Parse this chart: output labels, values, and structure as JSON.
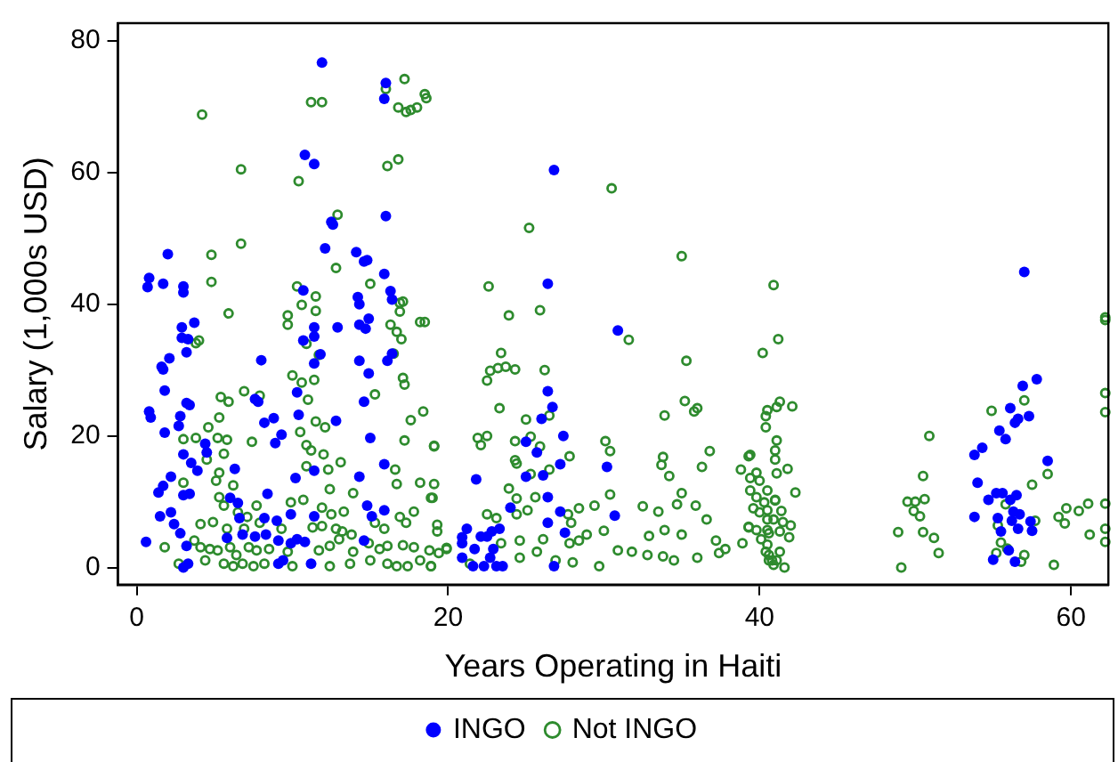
{
  "chart_data": {
    "type": "scatter",
    "xlabel": "Years Operating in Haiti",
    "ylabel": "Salary (1,000s USD)",
    "xlim": [
      -1.2,
      62.4
    ],
    "ylim": [
      -2.6,
      82.7
    ],
    "xticks": [
      0,
      20,
      40,
      60
    ],
    "yticks": [
      0,
      20,
      40,
      60,
      80
    ],
    "grid": false,
    "legend": "bottom",
    "marker": "circle",
    "series": [
      {
        "name": "INGO",
        "color": "#0000ff",
        "x": [
          11.9,
          16.0,
          15.9,
          10.8,
          11.4,
          12.5,
          12.6,
          16.0,
          12.1,
          14.1,
          14.6,
          14.8,
          2.0,
          0.8,
          0.7,
          1.7,
          3.0,
          3.0,
          15.9,
          16.3,
          16.4,
          10.7,
          14.2,
          14.3,
          2.9,
          3.7,
          2.9,
          3.3,
          3.2,
          2.1,
          1.6,
          1.7,
          1.8,
          0.8,
          0.9,
          1.8,
          3.2,
          3.4,
          2.8,
          2.7,
          8.0,
          11.4,
          11.4,
          10.7,
          11.4,
          11.8,
          12.9,
          14.3,
          14.9,
          14.7,
          14.3,
          14.9,
          16.1,
          16.4,
          7.8,
          7.6,
          10.3,
          14.6,
          8.2,
          8.8,
          10.4,
          12.8,
          8.9,
          9.3,
          15.0,
          3.0,
          4.4,
          4.5,
          3.5,
          6.3,
          3.9,
          2.2,
          1.7,
          11.4,
          10.2,
          15.9,
          1.4,
          3.4,
          3.0,
          6.0,
          6.5,
          8.4,
          14.3,
          14.8,
          15.9,
          1.5,
          2.2,
          2.4,
          6.6,
          8.2,
          9.9,
          9.0,
          11.4,
          15.1,
          0.6,
          2.8,
          3.2,
          5.8,
          6.8,
          7.6,
          8.3,
          9.1,
          9.4,
          9.1,
          9.9,
          10.3,
          10.8,
          3.3,
          3.0,
          11.2,
          14.6,
          20.9,
          20.9,
          26.8,
          26.4,
          30.9,
          26.4,
          26.7,
          26.0,
          27.4,
          25.0,
          25.7,
          27.2,
          30.2,
          21.8,
          26.1,
          25.0,
          26.4,
          27.2,
          30.7,
          24.0,
          26.4,
          27.5,
          21.2,
          20.9,
          22.1,
          22.5,
          22.8,
          23.3,
          21.7,
          22.9,
          22.7,
          21.6,
          22.3,
          23.1,
          23.5,
          26.8,
          57.0,
          57.8,
          56.9,
          56.1,
          57.3,
          56.6,
          56.4,
          55.4,
          55.8,
          54.3,
          53.8,
          58.5,
          54.0,
          55.2,
          54.7,
          55.6,
          56.5,
          56.1,
          56.3,
          56.7,
          53.8,
          55.3,
          57.4,
          56.2,
          55.5,
          56.6,
          57.5,
          56.0,
          55.0,
          56.4
        ],
        "values": [
          76.7,
          73.6,
          71.2,
          62.7,
          61.3,
          52.5,
          52.1,
          53.4,
          48.5,
          47.9,
          46.5,
          46.7,
          47.6,
          44.0,
          42.6,
          43.1,
          42.7,
          41.8,
          44.6,
          42.0,
          40.7,
          42.1,
          41.1,
          40.0,
          36.5,
          37.2,
          34.9,
          34.7,
          32.7,
          31.8,
          30.5,
          30.1,
          26.9,
          23.7,
          22.8,
          20.5,
          25.0,
          24.7,
          23.0,
          21.5,
          31.5,
          36.5,
          35.1,
          34.5,
          31.0,
          32.4,
          36.5,
          36.9,
          37.8,
          36.3,
          31.4,
          29.5,
          31.4,
          32.5,
          25.2,
          25.6,
          26.6,
          25.2,
          22.0,
          22.7,
          23.2,
          22.3,
          18.9,
          20.2,
          19.7,
          17.2,
          18.8,
          17.5,
          15.9,
          15.0,
          14.7,
          13.8,
          12.4,
          14.7,
          13.6,
          15.7,
          11.4,
          11.2,
          11.0,
          10.6,
          9.8,
          11.2,
          13.8,
          9.4,
          8.7,
          7.8,
          8.4,
          6.6,
          7.5,
          7.5,
          8.1,
          7.1,
          7.8,
          7.8,
          3.9,
          5.2,
          3.3,
          4.5,
          5.0,
          4.7,
          5.0,
          4.1,
          1.1,
          0.6,
          3.7,
          4.3,
          3.9,
          0.6,
          0.0,
          0.6,
          4.1,
          3.7,
          1.5,
          60.4,
          43.1,
          36.0,
          26.8,
          24.4,
          22.6,
          20.0,
          19.1,
          17.5,
          15.7,
          15.3,
          13.4,
          14.0,
          13.8,
          10.7,
          8.5,
          7.9,
          9.1,
          6.8,
          5.3,
          5.9,
          4.6,
          4.7,
          4.7,
          5.5,
          5.9,
          2.8,
          2.8,
          1.5,
          0.2,
          0.2,
          0.2,
          0.2,
          0.2,
          44.9,
          28.6,
          27.6,
          24.2,
          23.0,
          22.6,
          22.0,
          20.8,
          19.5,
          18.2,
          17.1,
          16.2,
          12.9,
          11.3,
          10.3,
          11.3,
          11.0,
          10.3,
          8.5,
          8.1,
          7.7,
          7.5,
          7.0,
          7.1,
          5.5,
          5.9,
          5.6,
          2.6,
          1.2,
          0.9
        ]
      },
      {
        "name": "Not INGO",
        "color": "#2e8b2e",
        "x": [
          4.2,
          11.2,
          11.9,
          17.2,
          16.8,
          17.3,
          17.6,
          18.0,
          18.5,
          18.6,
          16.0,
          6.7,
          10.4,
          16.1,
          16.8,
          12.9,
          6.7,
          4.8,
          4.8,
          12.8,
          5.9,
          10.3,
          10.6,
          11.5,
          11.5,
          9.7,
          9.7,
          4.0,
          3.8,
          10.9,
          11.7,
          15.0,
          16.9,
          17.1,
          16.9,
          16.3,
          18.5,
          18.2,
          16.7,
          17.0,
          16.5,
          17.1,
          17.2,
          10.0,
          10.6,
          11.4,
          11.0,
          6.9,
          7.9,
          5.4,
          5.9,
          5.3,
          4.6,
          10.5,
          11.5,
          12.1,
          15.3,
          18.4,
          17.6,
          17.2,
          19.1,
          3.0,
          3.8,
          5.2,
          5.8,
          7.4,
          4.5,
          5.6,
          10.9,
          11.2,
          12.0,
          13.1,
          10.9,
          12.3,
          16.6,
          5.3,
          6.2,
          5.1,
          3.0,
          12.4,
          13.9,
          16.7,
          18.2,
          18.9,
          5.3,
          5.6,
          6.5,
          7.1,
          7.7,
          9.9,
          10.7,
          11.9,
          12.5,
          13.3,
          16.9,
          17.8,
          4.1,
          4.9,
          5.8,
          6.9,
          7.9,
          9.3,
          11.3,
          11.9,
          12.8,
          13.2,
          13.8,
          15.3,
          15.9,
          17.3,
          19.3,
          1.8,
          3.7,
          4.1,
          4.7,
          5.2,
          6.0,
          6.4,
          7.2,
          7.7,
          8.5,
          9.7,
          11.7,
          12.4,
          13.0,
          13.9,
          14.9,
          15.6,
          16.1,
          17.1,
          17.8,
          18.8,
          19.9,
          2.7,
          4.4,
          5.6,
          6.2,
          6.8,
          7.5,
          8.2,
          10.0,
          12.4,
          13.7,
          15.0,
          16.1,
          16.7,
          17.4,
          18.2,
          18.9,
          30.5,
          25.2,
          35.0,
          22.6,
          23.9,
          25.9,
          31.6,
          23.4,
          22.7,
          23.2,
          23.7,
          24.3,
          22.5,
          26.2,
          35.3,
          40.2,
          40.9,
          41.2,
          23.3,
          25.0,
          26.5,
          35.2,
          33.9,
          35.8,
          36.0,
          19.1,
          21.9,
          22.5,
          22.1,
          24.3,
          25.3,
          25.9,
          27.8,
          30.1,
          30.4,
          33.8,
          33.7,
          34.2,
          36.3,
          36.8,
          38.8,
          39.3,
          40.4,
          41.1,
          19.1,
          19.0,
          24.3,
          24.4,
          25.3,
          26.5,
          23.9,
          25.6,
          24.4,
          30.4,
          29.4,
          28.4,
          27.7,
          32.5,
          33.5,
          34.7,
          35.9,
          36.6,
          35.0,
          39.4,
          39.8,
          40.5,
          41.0,
          23.1,
          22.5,
          24.4,
          25.1,
          19.3,
          27.9,
          28.9,
          30.0,
          32.9,
          33.9,
          35.0,
          37.2,
          39.3,
          40.5,
          23.4,
          24.6,
          26.1,
          27.8,
          28.4,
          19.9,
          19.4,
          18.9,
          21.4,
          24.6,
          25.7,
          26.9,
          28.0,
          29.7,
          30.9,
          31.8,
          32.8,
          33.8,
          34.5,
          36.0,
          37.4,
          37.8,
          38.9,
          40.6,
          40.8,
          41.3,
          42.1,
          40.5,
          40.4,
          41.1,
          41.0,
          39.4,
          41.0,
          41.8,
          39.8,
          41.1,
          40.0,
          40.5,
          42.3,
          39.4,
          41.0,
          39.6,
          40.3,
          40.0,
          41.4,
          40.5,
          40.9,
          41.5,
          42.0,
          39.3,
          39.8,
          40.6,
          41.3,
          41.9,
          40.1,
          40.5,
          40.4,
          41.3,
          40.6,
          41.1,
          40.9,
          41.6,
          50.9,
          50.5,
          49.5,
          50.0,
          50.6,
          49.9,
          50.3,
          48.9,
          50.5,
          51.2,
          51.5,
          49.1,
          54.9,
          57.0,
          57.5,
          58.5,
          55.8,
          57.7,
          55.3,
          55.5,
          55.2,
          55.9,
          57.0,
          56.8,
          58.9,
          59.2,
          59.7,
          59.6,
          60.5,
          61.1,
          61.2,
          62.2,
          62.2,
          62.2,
          62.2,
          62.2,
          62.2,
          62.2
        ],
        "values": [
          68.8,
          70.7,
          70.7,
          74.2,
          69.9,
          69.2,
          69.5,
          69.9,
          71.9,
          71.3,
          72.7,
          60.5,
          58.7,
          61.0,
          62.0,
          53.6,
          49.2,
          47.5,
          43.4,
          45.5,
          38.6,
          42.7,
          39.9,
          41.2,
          39.0,
          38.3,
          36.9,
          34.5,
          34.1,
          34.0,
          32.3,
          43.1,
          40.2,
          40.4,
          38.9,
          36.9,
          37.3,
          37.3,
          35.8,
          34.7,
          32.5,
          28.8,
          27.8,
          29.2,
          28.1,
          28.5,
          25.5,
          26.8,
          26.1,
          25.9,
          25.2,
          22.8,
          21.3,
          20.6,
          22.2,
          21.3,
          26.3,
          23.7,
          22.4,
          19.3,
          18.5,
          19.5,
          19.7,
          19.7,
          19.4,
          19.1,
          16.4,
          17.3,
          18.6,
          17.8,
          17.2,
          16.0,
          15.4,
          14.9,
          14.9,
          14.4,
          12.5,
          13.2,
          12.9,
          11.9,
          11.3,
          12.7,
          12.9,
          10.6,
          10.7,
          9.4,
          8.4,
          7.7,
          9.4,
          9.9,
          10.3,
          9.1,
          8.1,
          8.5,
          7.7,
          8.5,
          6.6,
          6.9,
          5.9,
          5.9,
          6.8,
          5.9,
          6.1,
          6.3,
          5.9,
          5.5,
          5.0,
          6.8,
          5.9,
          6.8,
          5.5,
          3.1,
          4.1,
          3.1,
          2.8,
          2.6,
          3.1,
          1.9,
          3.1,
          2.6,
          2.8,
          2.4,
          2.6,
          3.3,
          4.3,
          2.4,
          3.7,
          2.8,
          3.3,
          3.4,
          3.1,
          2.6,
          2.8,
          0.6,
          1.1,
          0.6,
          0.2,
          0.6,
          0.2,
          0.6,
          0.2,
          0.2,
          0.6,
          1.1,
          0.6,
          0.2,
          0.2,
          1.1,
          0.2,
          57.6,
          51.6,
          47.3,
          42.7,
          38.3,
          39.1,
          34.6,
          32.6,
          29.9,
          30.3,
          30.5,
          30.1,
          28.4,
          30.0,
          31.4,
          32.6,
          42.9,
          34.7,
          24.2,
          22.5,
          23.1,
          25.3,
          23.1,
          23.7,
          24.2,
          18.4,
          19.7,
          20.0,
          18.6,
          19.2,
          19.9,
          18.4,
          16.9,
          19.2,
          17.7,
          16.8,
          15.6,
          13.9,
          15.3,
          17.7,
          14.9,
          16.9,
          23.0,
          24.4,
          12.7,
          10.6,
          16.3,
          15.8,
          14.2,
          14.9,
          12.0,
          10.7,
          10.5,
          11.1,
          9.4,
          9.0,
          8.1,
          9.3,
          8.5,
          9.6,
          9.4,
          7.3,
          11.3,
          13.6,
          10.7,
          8.7,
          10.2,
          7.5,
          8.1,
          8.1,
          8.7,
          6.5,
          6.8,
          5.0,
          5.6,
          4.8,
          5.7,
          5.0,
          4.1,
          6.2,
          5.7,
          3.7,
          4.1,
          4.3,
          3.7,
          4.1,
          3.0,
          2.2,
          0.2,
          0.6,
          1.5,
          2.4,
          1.1,
          0.8,
          0.2,
          2.6,
          2.4,
          1.9,
          1.7,
          1.1,
          1.5,
          2.2,
          2.8,
          3.7,
          1.9,
          1.1,
          25.2,
          24.5,
          23.9,
          21.3,
          19.3,
          17.8,
          17.1,
          16.4,
          15.0,
          14.4,
          14.3,
          13.2,
          11.7,
          11.4,
          11.7,
          10.3,
          9.0,
          9.9,
          8.4,
          8.6,
          7.3,
          7.3,
          6.9,
          6.4,
          6.1,
          5.7,
          5.2,
          5.5,
          4.6,
          4.3,
          3.5,
          2.4,
          2.4,
          1.1,
          1.1,
          0.4,
          0.0,
          20.0,
          13.9,
          10.0,
          10.0,
          10.4,
          8.6,
          7.8,
          5.4,
          5.4,
          4.5,
          2.2,
          0.0,
          23.8,
          25.4,
          12.6,
          14.2,
          9.6,
          7.1,
          6.4,
          3.8,
          2.2,
          2.9,
          1.9,
          0.9,
          0.4,
          7.7,
          9.0,
          6.7,
          8.6,
          9.7,
          5.0,
          38.0,
          37.6,
          26.5,
          23.6,
          9.7,
          5.9,
          3.9
        ]
      }
    ]
  }
}
